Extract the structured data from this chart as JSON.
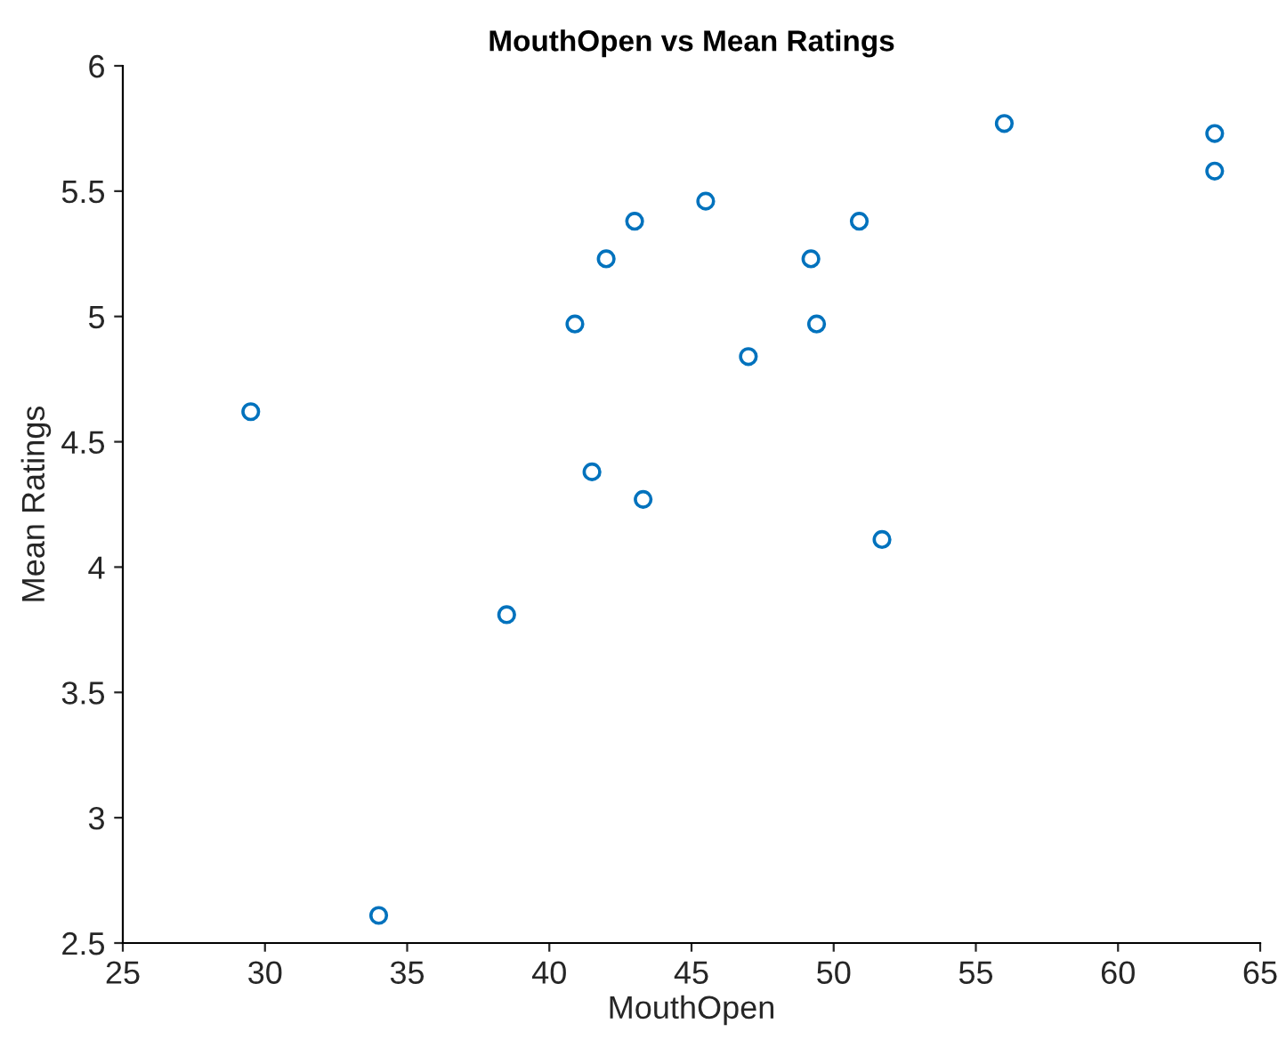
{
  "chart_data": {
    "type": "scatter",
    "title": "MouthOpen vs Mean Ratings",
    "xlabel": "MouthOpen",
    "ylabel": "Mean Ratings",
    "x": [
      29.5,
      34.0,
      38.5,
      40.9,
      41.5,
      42.0,
      43.0,
      43.3,
      45.5,
      47.0,
      49.2,
      49.4,
      50.9,
      51.7,
      56.0,
      63.4,
      63.4
    ],
    "series": [
      {
        "color": "#0072bd",
        "values": [
          4.62,
          2.61,
          3.81,
          4.97,
          4.38,
          5.23,
          5.38,
          4.27,
          5.46,
          4.84,
          5.23,
          4.97,
          5.38,
          4.11,
          5.77,
          5.73,
          5.58
        ]
      }
    ],
    "xlim": [
      25,
      65
    ],
    "xticks": [
      25,
      30,
      35,
      40,
      45,
      50,
      55,
      60,
      65
    ],
    "ylim": [
      2.5,
      6
    ],
    "yticks": [
      2.5,
      3,
      3.5,
      4,
      4.5,
      5,
      5.5,
      6
    ],
    "grid": false,
    "legend": false,
    "marker": "circle"
  }
}
